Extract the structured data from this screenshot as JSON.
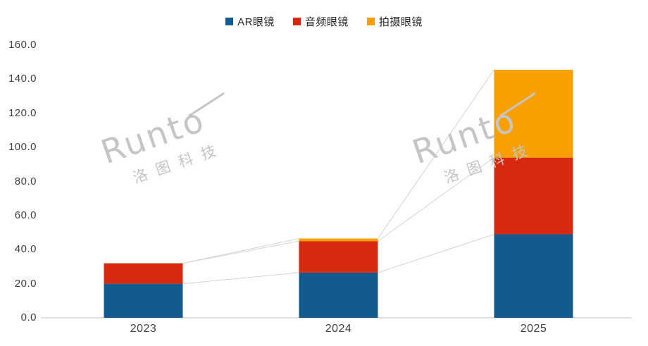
{
  "chart_data": {
    "type": "bar",
    "stacked": true,
    "title": "",
    "categories": [
      "2023",
      "2024",
      "2025"
    ],
    "series": [
      {
        "name": "AR眼镜",
        "color": "#135A8F",
        "values": [
          20,
          26.5,
          49
        ]
      },
      {
        "name": "音频眼镜",
        "color": "#D6290F",
        "values": [
          12,
          18.5,
          45
        ]
      },
      {
        "name": "拍摄眼镜",
        "color": "#F9A000",
        "values": [
          0,
          1.5,
          51.5
        ]
      }
    ],
    "totals": [
      32,
      46.5,
      145.5
    ],
    "ylim": [
      0,
      160
    ],
    "ytick_step": 20,
    "ytick_labels": [
      "0.0",
      "20.0",
      "40.0",
      "60.0",
      "80.0",
      "100.0",
      "120.0",
      "140.0",
      "160.0"
    ],
    "grid": false,
    "legend_position": "top-center",
    "series_connector_lines": true,
    "connector_color": "#d4d4d4",
    "axis_color": "#d9d9d9",
    "tick_label_color": "#3f3f3f"
  },
  "watermark": {
    "brand": "Runto",
    "subtext": "洛图科技",
    "color": "#c5c5c5"
  }
}
